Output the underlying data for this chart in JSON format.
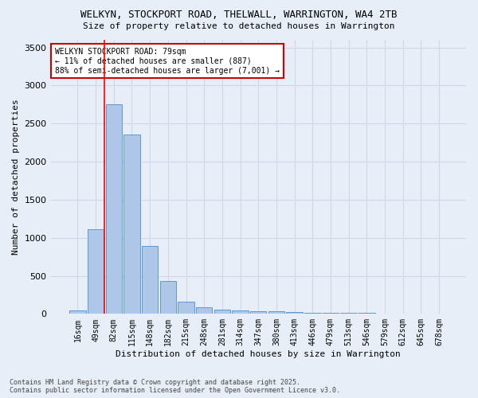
{
  "title": "WELKYN, STOCKPORT ROAD, THELWALL, WARRINGTON, WA4 2TB",
  "subtitle": "Size of property relative to detached houses in Warrington",
  "xlabel": "Distribution of detached houses by size in Warrington",
  "ylabel": "Number of detached properties",
  "categories": [
    "16sqm",
    "49sqm",
    "82sqm",
    "115sqm",
    "148sqm",
    "182sqm",
    "215sqm",
    "248sqm",
    "281sqm",
    "314sqm",
    "347sqm",
    "380sqm",
    "413sqm",
    "446sqm",
    "479sqm",
    "513sqm",
    "546sqm",
    "579sqm",
    "612sqm",
    "645sqm",
    "678sqm"
  ],
  "values": [
    50,
    1110,
    2750,
    2360,
    890,
    430,
    165,
    92,
    58,
    48,
    38,
    30,
    22,
    16,
    14,
    12,
    10,
    8,
    7,
    6,
    5
  ],
  "bar_color": "#aec6e8",
  "bar_edge_color": "#5b9bd5",
  "grid_color": "#d0d8e8",
  "bg_color": "#e8eef8",
  "red_line_index": 2,
  "annotation_text": "WELKYN STOCKPORT ROAD: 79sqm\n← 11% of detached houses are smaller (887)\n88% of semi-detached houses are larger (7,001) →",
  "annotation_box_color": "#ffffff",
  "annotation_border_color": "#cc0000",
  "footer_line1": "Contains HM Land Registry data © Crown copyright and database right 2025.",
  "footer_line2": "Contains public sector information licensed under the Open Government Licence v3.0.",
  "ylim": [
    0,
    3600
  ],
  "title_fontsize": 9,
  "subtitle_fontsize": 8,
  "ylabel_fontsize": 8,
  "xlabel_fontsize": 8,
  "tick_fontsize": 7,
  "annot_fontsize": 7,
  "footer_fontsize": 6
}
